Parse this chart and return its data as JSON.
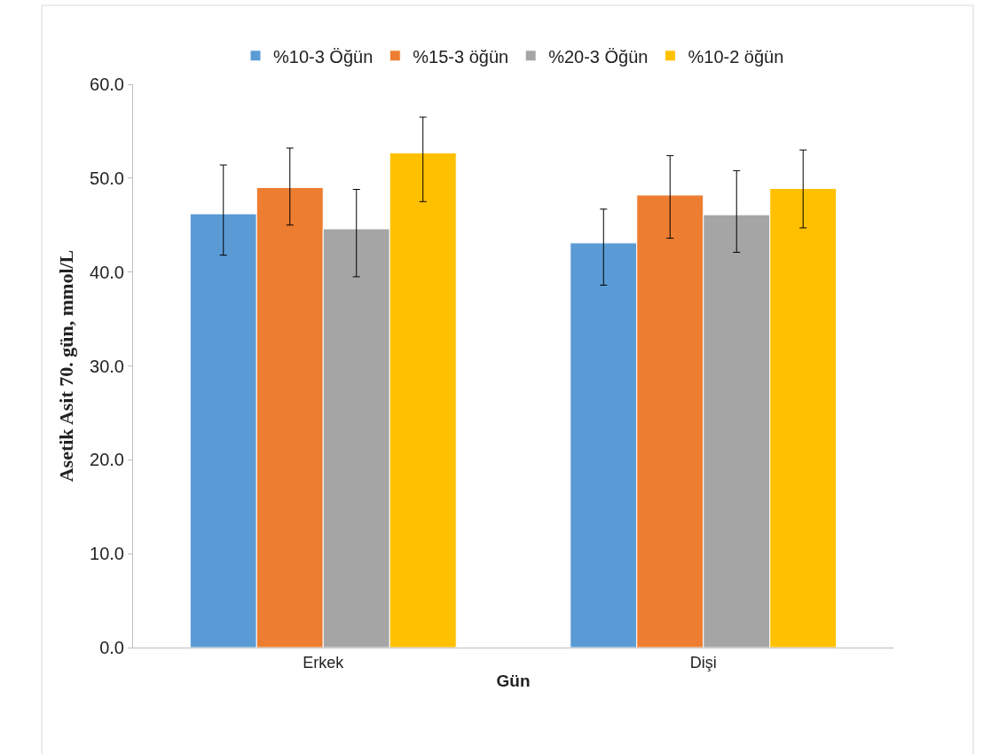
{
  "chart_data": {
    "type": "bar",
    "xlabel": "Gün",
    "ylabel": "Asetik Asit 70. gün, mmol/L",
    "categories": [
      "Erkek",
      "Dişi"
    ],
    "series": [
      {
        "name": "%10-3 Öğün",
        "color": "#5b9bd5",
        "values": [
          46.2,
          43.1
        ],
        "errors": [
          [
            41.8,
            51.4
          ],
          [
            38.6,
            46.7
          ]
        ]
      },
      {
        "name": "%15-3 öğün",
        "color": "#ed7d31",
        "values": [
          49.0,
          48.2
        ],
        "errors": [
          [
            45.0,
            53.2
          ],
          [
            43.6,
            52.4
          ]
        ]
      },
      {
        "name": "%20-3 Öğün",
        "color": "#a5a5a5",
        "values": [
          44.6,
          46.1
        ],
        "errors": [
          [
            39.5,
            48.8
          ],
          [
            42.1,
            50.8
          ]
        ]
      },
      {
        "name": "%10-2 öğün",
        "color": "#ffc000",
        "values": [
          52.7,
          48.9
        ],
        "errors": [
          [
            47.5,
            56.5
          ],
          [
            44.7,
            53.0
          ]
        ]
      }
    ],
    "ylim": [
      0,
      60
    ],
    "yticks": [
      {
        "value": 0,
        "label": "0.0"
      },
      {
        "value": 10,
        "label": "10.0"
      },
      {
        "value": 20,
        "label": "20.0"
      },
      {
        "value": 30,
        "label": "30.0"
      },
      {
        "value": 40,
        "label": "40.0"
      },
      {
        "value": 50,
        "label": "50.0"
      },
      {
        "value": 60,
        "label": "60.0"
      }
    ],
    "legend": "top"
  }
}
